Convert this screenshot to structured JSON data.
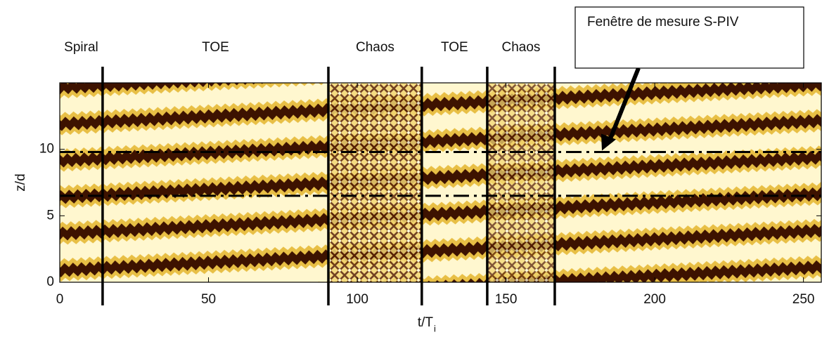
{
  "chart_data": {
    "type": "spacetime",
    "xlabel": "t/T",
    "xlabel_subscript": "i",
    "ylabel": "z/d",
    "xlim": [
      0,
      256
    ],
    "xticks": [
      0,
      50,
      100,
      150,
      200,
      250
    ],
    "ylim": [
      0,
      15
    ],
    "yticks": [
      0,
      5,
      10
    ],
    "regimes": [
      "Spiral",
      "TOE",
      "Chaos",
      "TOE",
      "Chaos"
    ],
    "regime_boundaries": [
      14.4,
      90.3,
      121.7,
      143.7,
      166.4
    ],
    "measurement_window": {
      "label": "Fenêtre de mesure S-PIV",
      "zlim": [
        6.5,
        9.8
      ]
    }
  }
}
